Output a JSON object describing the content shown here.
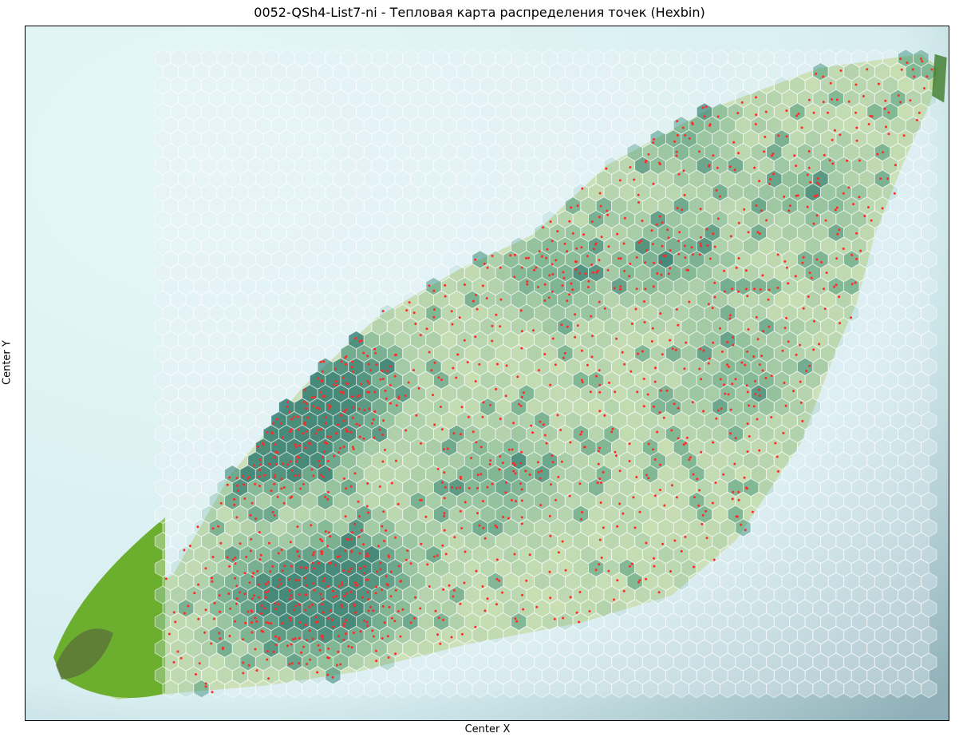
{
  "chart_data": {
    "type": "heatmap",
    "subtype": "hexbin",
    "title": "0052-QSh4-List7-ni - Тепловая карта распределения точек (Hexbin)",
    "xlabel": "Center X",
    "ylabel": "Center Y",
    "axis_ticks_shown": false,
    "grid": false,
    "background": "photograph of a leaf (green) on a pale cyan background",
    "colors": {
      "background_light": "#e6f7f9",
      "background_dark": "#8fb0b8",
      "leaf": "#bdd89a",
      "leaf_dark": "#8fb66e",
      "stem": "#6cae2e",
      "hex_low": "#e9f2f7",
      "hex_mid": "#5fa596",
      "hex_high": "#2f7a72",
      "hex_edge": "#ffffff",
      "point": "#ff2a2a"
    },
    "leaf_outline": [
      [
        0.06,
        0.91
      ],
      [
        0.1,
        0.84
      ],
      [
        0.16,
        0.79
      ],
      [
        0.22,
        0.65
      ],
      [
        0.3,
        0.52
      ],
      [
        0.38,
        0.42
      ],
      [
        0.47,
        0.35
      ],
      [
        0.55,
        0.3
      ],
      [
        0.63,
        0.2
      ],
      [
        0.74,
        0.12
      ],
      [
        0.86,
        0.06
      ],
      [
        0.97,
        0.04
      ],
      [
        0.99,
        0.06
      ],
      [
        0.98,
        0.11
      ],
      [
        0.95,
        0.2
      ],
      [
        0.92,
        0.3
      ],
      [
        0.9,
        0.4
      ],
      [
        0.88,
        0.46
      ],
      [
        0.84,
        0.6
      ],
      [
        0.77,
        0.74
      ],
      [
        0.7,
        0.82
      ],
      [
        0.6,
        0.86
      ],
      [
        0.48,
        0.89
      ],
      [
        0.36,
        0.93
      ],
      [
        0.26,
        0.95
      ],
      [
        0.17,
        0.96
      ],
      [
        0.1,
        0.97
      ],
      [
        0.06,
        0.95
      ]
    ],
    "density_hotspots": [
      {
        "x": 0.26,
        "y": 0.61,
        "weight": 1.0
      },
      {
        "x": 0.31,
        "y": 0.57,
        "weight": 0.9
      },
      {
        "x": 0.35,
        "y": 0.5,
        "weight": 0.75
      },
      {
        "x": 0.27,
        "y": 0.82,
        "weight": 0.85
      },
      {
        "x": 0.36,
        "y": 0.78,
        "weight": 0.75
      },
      {
        "x": 0.33,
        "y": 0.85,
        "weight": 0.7
      },
      {
        "x": 0.51,
        "y": 0.65,
        "weight": 0.55
      },
      {
        "x": 0.7,
        "y": 0.33,
        "weight": 0.5
      },
      {
        "x": 0.78,
        "y": 0.5,
        "weight": 0.45
      },
      {
        "x": 0.57,
        "y": 0.36,
        "weight": 0.5
      },
      {
        "x": 0.7,
        "y": 0.15,
        "weight": 0.5
      },
      {
        "x": 0.85,
        "y": 0.24,
        "weight": 0.4
      }
    ],
    "approx_point_count": 1400
  }
}
